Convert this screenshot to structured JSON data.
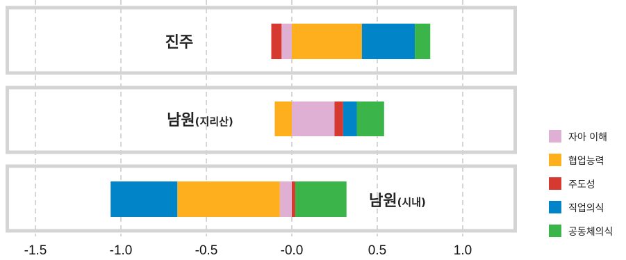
{
  "chart_data": {
    "type": "bar",
    "orientation": "horizontal",
    "stacked": "diverging",
    "xlim": [
      -1.65,
      1.3
    ],
    "x_ticks": [
      -1.5,
      -1.0,
      -0.5,
      0.0,
      0.5,
      1.0
    ],
    "x_tick_labels": [
      "-1.5",
      "-1.0",
      "-0.5",
      "-0.0",
      "0.5",
      "1.0"
    ],
    "grid": "vertical dashed",
    "legend_position": "right",
    "categories": [
      {
        "main": "진주",
        "sub": ""
      },
      {
        "main": "남원",
        "sub": "(지리산)"
      },
      {
        "main": "남원",
        "sub": "(시내)"
      }
    ],
    "series": [
      {
        "name": "자아 이해",
        "color": "#dfafd4",
        "values": [
          -0.06,
          0.25,
          -0.07
        ]
      },
      {
        "name": "협업능력",
        "color": "#fdaf1d",
        "values": [
          0.41,
          -0.1,
          -0.6
        ]
      },
      {
        "name": "주도성",
        "color": "#d5392f",
        "values": [
          -0.06,
          0.05,
          0.02
        ]
      },
      {
        "name": "직업의식",
        "color": "#0284c9",
        "values": [
          0.31,
          0.08,
          -0.39
        ]
      },
      {
        "name": "공동체의식",
        "color": "#3bb54a",
        "values": [
          0.09,
          0.16,
          0.3
        ]
      }
    ]
  }
}
